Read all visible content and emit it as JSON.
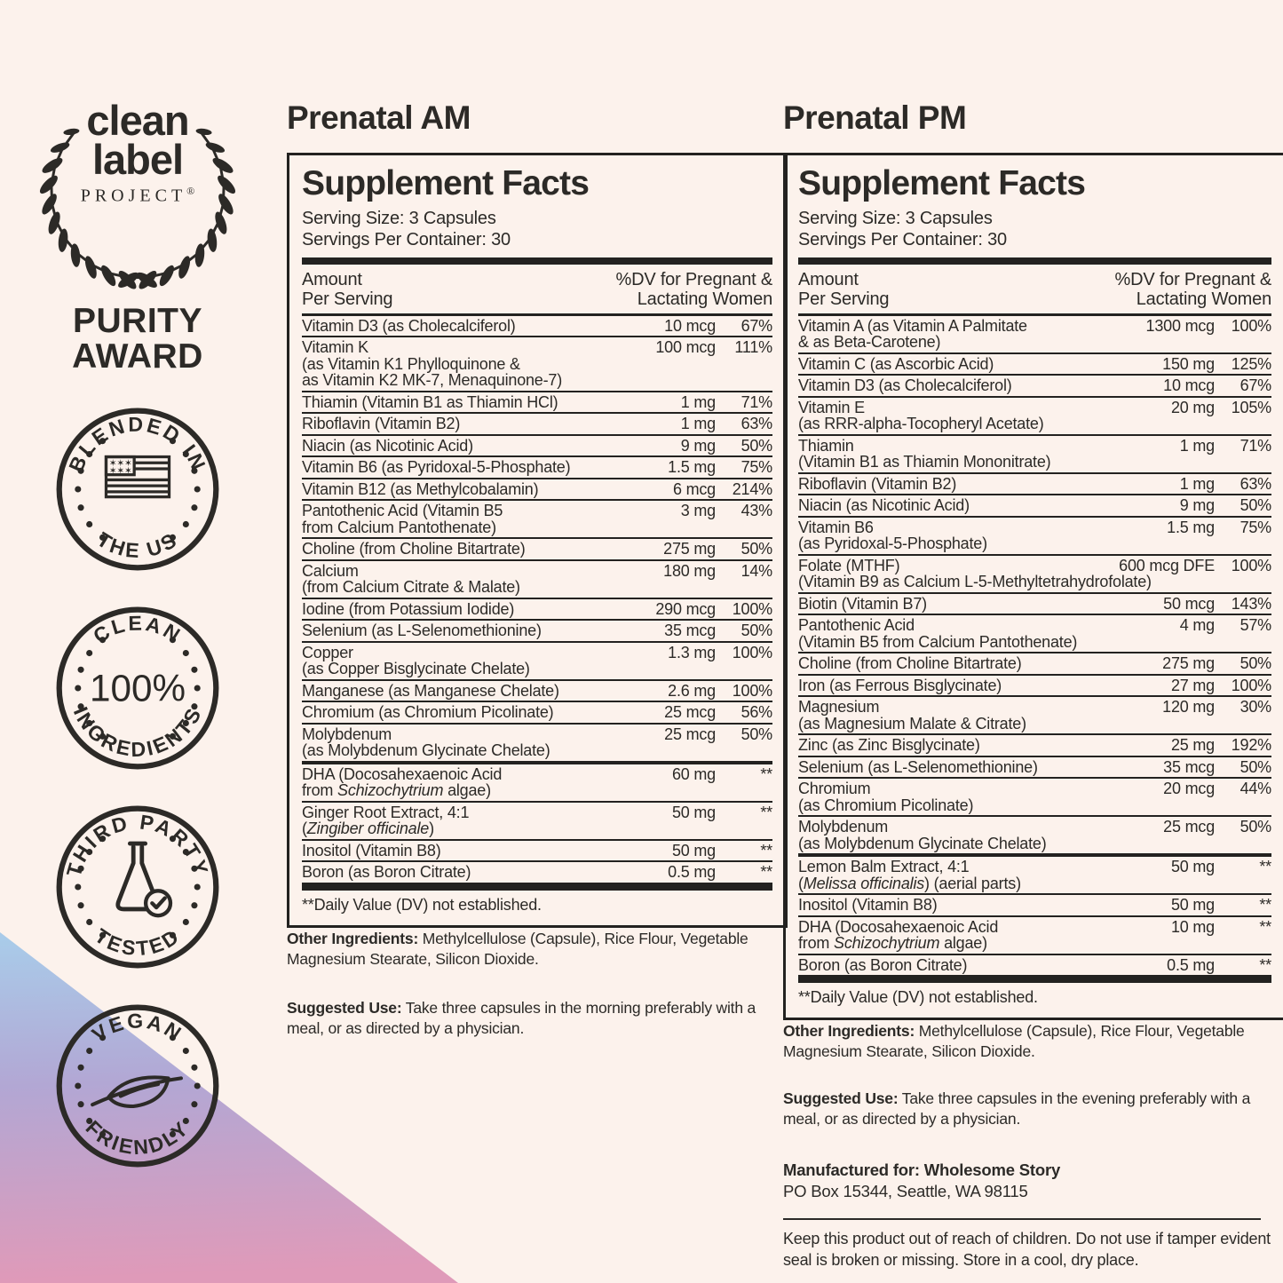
{
  "colors": {
    "background": "#fcf2ec",
    "ink": "#2c2a27",
    "rule": "#232220",
    "gradient_blue": "#a9cbe9",
    "gradient_purple": "#b2a7d4",
    "gradient_pink": "#df9ab9"
  },
  "seal": {
    "brand_line1": "clean",
    "brand_line2": "label",
    "brand_line3": "PROJECT",
    "brand_reg": "®",
    "award_line1": "PURITY",
    "award_line2": "AWARD"
  },
  "badges": [
    {
      "arc_top": "BLENDED IN",
      "arc_bottom": "THE US",
      "icon": "us-flag-icon",
      "center_text": ""
    },
    {
      "arc_top": "CLEAN",
      "arc_bottom": "INGREDIENTS",
      "icon": "100-percent-text",
      "center_text": "100%"
    },
    {
      "arc_top": "THIRD PARTY",
      "arc_bottom": "TESTED",
      "icon": "flask-check-icon",
      "center_text": ""
    },
    {
      "arc_top": "VEGAN",
      "arc_bottom": "FRIENDLY",
      "icon": "leaf-icon",
      "center_text": ""
    }
  ],
  "shared": {
    "facts_title": "Supplement Facts",
    "serving_size": "Serving Size: 3 Capsules",
    "servings_per_container": "Servings Per Container: 30",
    "amount_header_line1": "Amount",
    "amount_header_line2": "Per Serving",
    "dv_header_line1": "%DV for Pregnant &",
    "dv_header_line2": "Lactating Women",
    "footnote": "**Daily Value (DV) not established.",
    "other_ingredients_label": "Other Ingredients:",
    "other_ingredients_text": " Methylcellulose (Capsule), Rice Flour, Vegetable Magnesium Stearate, Silicon Dioxide.",
    "suggested_use_label": "Suggested Use:"
  },
  "am": {
    "title": "Prenatal AM",
    "suggested_use_text": " Take three capsules in the morning preferably with a meal, or as directed by a physician.",
    "rows": [
      {
        "lines": [
          "Vitamin D3 (as Cholecalciferol)"
        ],
        "amount": "10 mcg",
        "dv": "67%"
      },
      {
        "lines": [
          "Vitamin K",
          "(as Vitamin K1 Phylloquinone &",
          "as Vitamin K2 MK-7, Menaquinone-7)"
        ],
        "amount": "100 mcg",
        "dv": "111%"
      },
      {
        "lines": [
          "Thiamin (Vitamin B1 as Thiamin HCl)"
        ],
        "amount": "1 mg",
        "dv": "71%"
      },
      {
        "lines": [
          "Riboflavin (Vitamin B2)"
        ],
        "amount": "1 mg",
        "dv": "63%"
      },
      {
        "lines": [
          "Niacin (as Nicotinic Acid)"
        ],
        "amount": "9 mg",
        "dv": "50%"
      },
      {
        "lines": [
          "Vitamin B6 (as Pyridoxal-5-Phosphate)"
        ],
        "amount": "1.5 mg",
        "dv": "75%"
      },
      {
        "lines": [
          "Vitamin B12 (as Methylcobalamin)"
        ],
        "amount": "6 mcg",
        "dv": "214%"
      },
      {
        "lines": [
          "Pantothenic Acid (Vitamin B5",
          "from Calcium Pantothenate)"
        ],
        "amount": "3 mg",
        "dv": "43%"
      },
      {
        "lines": [
          "Choline (from Choline Bitartrate)"
        ],
        "amount": "275 mg",
        "dv": "50%"
      },
      {
        "lines": [
          "Calcium",
          "(from Calcium Citrate & Malate)"
        ],
        "amount": "180 mg",
        "dv": "14%"
      },
      {
        "lines": [
          "Iodine (from Potassium Iodide)"
        ],
        "amount": "290 mcg",
        "dv": "100%"
      },
      {
        "lines": [
          "Selenium (as L-Selenomethionine)"
        ],
        "amount": "35 mcg",
        "dv": "50%"
      },
      {
        "lines": [
          "Copper",
          "(as Copper Bisglycinate Chelate)"
        ],
        "amount": "1.3 mg",
        "dv": "100%"
      },
      {
        "lines": [
          "Manganese (as Manganese Chelate)"
        ],
        "amount": "2.6 mg",
        "dv": "100%"
      },
      {
        "lines": [
          "Chromium (as Chromium Picolinate)"
        ],
        "amount": "25 mcg",
        "dv": "56%"
      },
      {
        "lines": [
          "Molybdenum",
          "(as Molybdenum Glycinate Chelate)"
        ],
        "amount": "25 mcg",
        "dv": "50%"
      },
      {
        "lines": [
          "DHA (Docosahexaenoic Acid",
          "from *Schizochytrium* algae)"
        ],
        "amount": "60 mg",
        "dv": "**",
        "section": true
      },
      {
        "lines": [
          "Ginger Root Extract, 4:1",
          "(*Zingiber officinale*)"
        ],
        "amount": "50 mg",
        "dv": "**"
      },
      {
        "lines": [
          "Inositol (Vitamin B8)"
        ],
        "amount": "50 mg",
        "dv": "**"
      },
      {
        "lines": [
          "Boron (as Boron Citrate)"
        ],
        "amount": "0.5 mg",
        "dv": "**"
      }
    ]
  },
  "pm": {
    "title": "Prenatal PM",
    "suggested_use_text": " Take three capsules in the evening preferably with a meal, or as directed by a physician.",
    "rows": [
      {
        "lines": [
          "Vitamin A (as Vitamin A Palmitate",
          "& as Beta-Carotene)"
        ],
        "amount": "1300 mcg",
        "dv": "100%"
      },
      {
        "lines": [
          "Vitamin C (as Ascorbic Acid)"
        ],
        "amount": "150 mg",
        "dv": "125%"
      },
      {
        "lines": [
          "Vitamin D3 (as Cholecalciferol)"
        ],
        "amount": "10 mcg",
        "dv": "67%"
      },
      {
        "lines": [
          "Vitamin E",
          "(as RRR-alpha-Tocopheryl Acetate)"
        ],
        "amount": "20 mg",
        "dv": "105%"
      },
      {
        "lines": [
          "Thiamin",
          "(Vitamin B1 as Thiamin Mononitrate)"
        ],
        "amount": "1 mg",
        "dv": "71%"
      },
      {
        "lines": [
          "Riboflavin (Vitamin B2)"
        ],
        "amount": "1 mg",
        "dv": "63%"
      },
      {
        "lines": [
          "Niacin (as Nicotinic Acid)"
        ],
        "amount": "9 mg",
        "dv": "50%"
      },
      {
        "lines": [
          "Vitamin B6",
          "(as Pyridoxal-5-Phosphate)"
        ],
        "amount": "1.5 mg",
        "dv": "75%"
      },
      {
        "lines": [
          "Folate (MTHF)",
          "(Vitamin B9 as Calcium L-5-Methyltetrahydrofolate)"
        ],
        "amount": "600 mcg DFE",
        "dv": "100%"
      },
      {
        "lines": [
          "Biotin (Vitamin B7)"
        ],
        "amount": "50 mcg",
        "dv": "143%"
      },
      {
        "lines": [
          "Pantothenic Acid",
          "(Vitamin B5 from Calcium Pantothenate)"
        ],
        "amount": "4 mg",
        "dv": "57%"
      },
      {
        "lines": [
          "Choline (from Choline Bitartrate)"
        ],
        "amount": "275 mg",
        "dv": "50%"
      },
      {
        "lines": [
          "Iron (as Ferrous Bisglycinate)"
        ],
        "amount": "27 mg",
        "dv": "100%"
      },
      {
        "lines": [
          "Magnesium",
          "(as Magnesium Malate & Citrate)"
        ],
        "amount": "120 mg",
        "dv": "30%"
      },
      {
        "lines": [
          "Zinc (as Zinc Bisglycinate)"
        ],
        "amount": "25 mg",
        "dv": "192%"
      },
      {
        "lines": [
          "Selenium (as L-Selenomethionine)"
        ],
        "amount": "35 mcg",
        "dv": "50%"
      },
      {
        "lines": [
          "Chromium",
          "(as Chromium Picolinate)"
        ],
        "amount": "20 mcg",
        "dv": "44%"
      },
      {
        "lines": [
          "Molybdenum",
          "(as Molybdenum Glycinate Chelate)"
        ],
        "amount": "25 mcg",
        "dv": "50%"
      },
      {
        "lines": [
          "Lemon Balm Extract, 4:1",
          "(*Melissa officinalis*) (aerial parts)"
        ],
        "amount": "50 mg",
        "dv": "**",
        "section": true
      },
      {
        "lines": [
          "Inositol (Vitamin B8)"
        ],
        "amount": "50 mg",
        "dv": "**"
      },
      {
        "lines": [
          "DHA (Docosahexaenoic Acid",
          "from *Schizochytrium* algae)"
        ],
        "amount": "10 mg",
        "dv": "**"
      },
      {
        "lines": [
          "Boron (as Boron Citrate)"
        ],
        "amount": "0.5 mg",
        "dv": "**"
      }
    ]
  },
  "footer": {
    "manufactured_for": "Manufactured for: Wholesome Story",
    "address": "PO Box 15344, Seattle, WA 98115",
    "warning": "Keep this product out of reach of children. Do not use if tamper evident seal is broken or missing. Store in a cool, dry place."
  }
}
